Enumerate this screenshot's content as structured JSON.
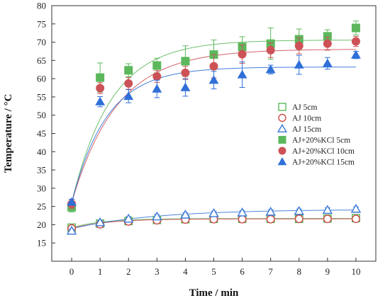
{
  "chart_data": {
    "type": "scatter",
    "xlabel": "Time / min",
    "ylabel": "Temperature / °C",
    "xlim": [
      -0.7,
      10.7
    ],
    "ylim": [
      10,
      80
    ],
    "x_ticks": [
      0,
      1,
      2,
      3,
      4,
      5,
      6,
      7,
      8,
      9,
      10
    ],
    "y_ticks": [
      15,
      20,
      25,
      30,
      35,
      40,
      45,
      50,
      55,
      60,
      65,
      70,
      75,
      80
    ],
    "grid": false,
    "legend_position": "right",
    "series": [
      {
        "name": "AJ 5cm",
        "marker": "square",
        "filled": false,
        "color": "#5cb85c",
        "x": [
          0,
          1,
          2,
          3,
          4,
          5,
          6,
          7,
          8,
          9,
          10
        ],
        "values": [
          19.2,
          20.3,
          21.0,
          21.3,
          21.5,
          21.6,
          21.6,
          21.6,
          21.6,
          21.7,
          21.8
        ],
        "err": [
          0.6,
          0.6,
          0.5,
          0.5,
          0.5,
          0.4,
          0.4,
          0.4,
          0.4,
          0.4,
          0.5
        ],
        "fit": {
          "y0": 19.2,
          "ymax": 21.7,
          "k": 0.9
        }
      },
      {
        "name": "AJ 10cm",
        "marker": "circle",
        "filled": false,
        "color": "#d14b4b",
        "x": [
          0,
          1,
          2,
          3,
          4,
          5,
          6,
          7,
          8,
          9,
          10
        ],
        "values": [
          19.0,
          20.1,
          20.9,
          21.2,
          21.4,
          21.5,
          21.5,
          21.5,
          21.6,
          21.6,
          21.6
        ],
        "err": [
          0.5,
          0.5,
          0.5,
          0.4,
          0.4,
          0.4,
          0.4,
          0.4,
          0.4,
          0.4,
          0.4
        ],
        "fit": {
          "y0": 19.0,
          "ymax": 21.6,
          "k": 0.8
        }
      },
      {
        "name": "AJ 15cm",
        "marker": "triangle",
        "filled": false,
        "color": "#3a78d8",
        "x": [
          0,
          1,
          2,
          3,
          4,
          5,
          6,
          7,
          8,
          9,
          10
        ],
        "values": [
          18.3,
          20.6,
          21.6,
          22.2,
          22.7,
          23.1,
          23.3,
          23.5,
          23.7,
          24.0,
          24.3
        ],
        "err": [
          0.5,
          0.6,
          0.6,
          0.6,
          0.6,
          0.6,
          0.6,
          0.6,
          0.6,
          0.6,
          0.6
        ],
        "fit": {
          "y0": 18.9,
          "ymax": 24.2,
          "k": 0.35
        }
      },
      {
        "name": "AJ+20%KCl 5cm",
        "marker": "square",
        "filled": true,
        "color": "#5cb85c",
        "x": [
          0,
          1,
          2,
          3,
          4,
          5,
          6,
          7,
          8,
          9,
          10
        ],
        "values": [
          24.8,
          60.3,
          62.3,
          63.6,
          64.8,
          66.6,
          68.7,
          69.6,
          70.8,
          71.6,
          73.9
        ],
        "err": [
          1.3,
          4.0,
          1.8,
          2.0,
          4.2,
          4.0,
          2.8,
          4.3,
          2.8,
          1.8,
          1.9
        ],
        "fit": {
          "y0": 26.0,
          "ymax": 70.6,
          "k": 0.72
        }
      },
      {
        "name": "AJ+20%KCl 10cm",
        "marker": "circle",
        "filled": true,
        "color": "#cd5257",
        "x": [
          0,
          1,
          2,
          3,
          4,
          5,
          6,
          7,
          8,
          9,
          10
        ],
        "values": [
          25.7,
          57.4,
          58.7,
          60.6,
          61.6,
          63.4,
          66.7,
          67.8,
          69.0,
          69.6,
          70.2
        ],
        "err": [
          1.2,
          1.5,
          1.6,
          1.6,
          1.8,
          3.2,
          2.5,
          2.0,
          2.2,
          1.8,
          1.4
        ],
        "fit": {
          "y0": 26.0,
          "ymax": 68.1,
          "k": 0.63
        }
      },
      {
        "name": "AJ+20%KCl 15cm",
        "marker": "triangle",
        "filled": true,
        "color": "#2f6fd8",
        "x": [
          0,
          1,
          2,
          3,
          4,
          5,
          6,
          7,
          8,
          9,
          10
        ],
        "values": [
          26.2,
          53.7,
          55.2,
          57.2,
          57.6,
          59.6,
          61.1,
          62.5,
          63.8,
          64.2,
          66.5
        ],
        "err": [
          0.8,
          1.4,
          1.8,
          2.4,
          2.4,
          2.4,
          3.5,
          1.2,
          2.6,
          1.6,
          1.0
        ],
        "fit": {
          "y0": 26.0,
          "ymax": 63.2,
          "k": 0.81
        }
      }
    ]
  }
}
